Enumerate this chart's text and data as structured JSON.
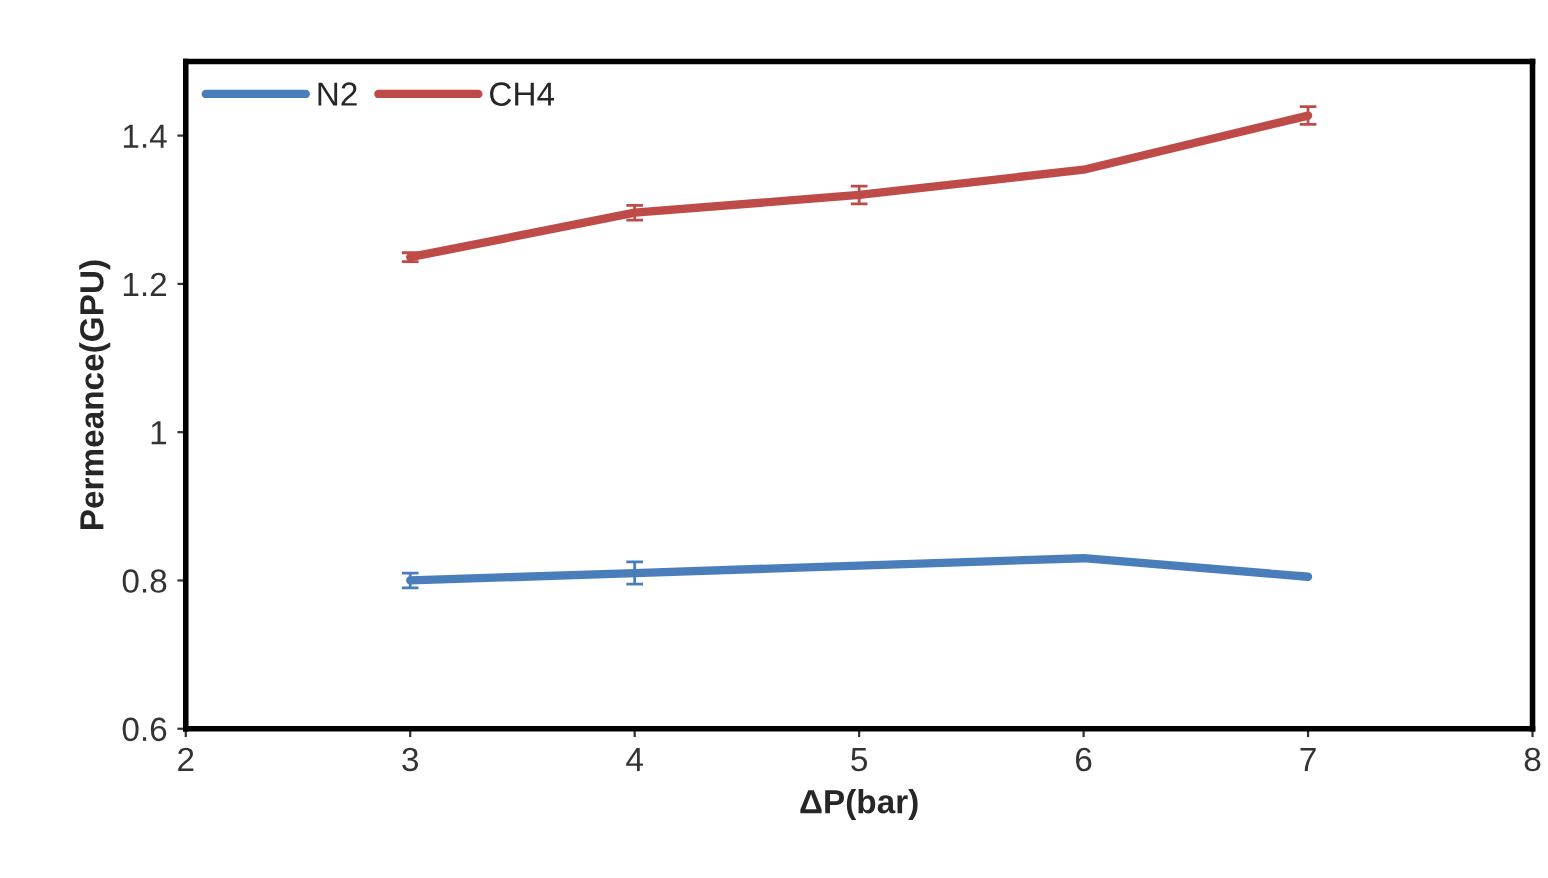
{
  "chart_data": {
    "type": "line",
    "xlabel": "ΔP(bar)",
    "ylabel": "Permeance(GPU)",
    "x": [
      3,
      4,
      5,
      6,
      7
    ],
    "series": [
      {
        "name": "N2",
        "color": "#4a7ebb",
        "values": [
          0.8,
          0.81,
          0.82,
          0.83,
          0.805
        ],
        "errors": [
          0.01,
          0.015,
          null,
          null,
          null
        ]
      },
      {
        "name": "CH4",
        "color": "#be4b48",
        "values": [
          1.236,
          1.296,
          1.32,
          1.354,
          1.427
        ],
        "errors": [
          0.006,
          0.01,
          0.012,
          null,
          0.012
        ]
      }
    ],
    "xlim": [
      2,
      8
    ],
    "xticks": [
      2,
      3,
      4,
      5,
      6,
      7,
      8
    ],
    "ylim": [
      0.6,
      1.5
    ],
    "yticks": [
      {
        "value": 0.6,
        "label": "0.6"
      },
      {
        "value": 0.8,
        "label": "0.8"
      },
      {
        "value": 1,
        "label": "1"
      },
      {
        "value": 1.2,
        "label": "1.2"
      },
      {
        "value": 1.4,
        "label": "1.4"
      }
    ],
    "legend": "top left",
    "grid": false,
    "marker": "none",
    "line_style": "solid"
  }
}
